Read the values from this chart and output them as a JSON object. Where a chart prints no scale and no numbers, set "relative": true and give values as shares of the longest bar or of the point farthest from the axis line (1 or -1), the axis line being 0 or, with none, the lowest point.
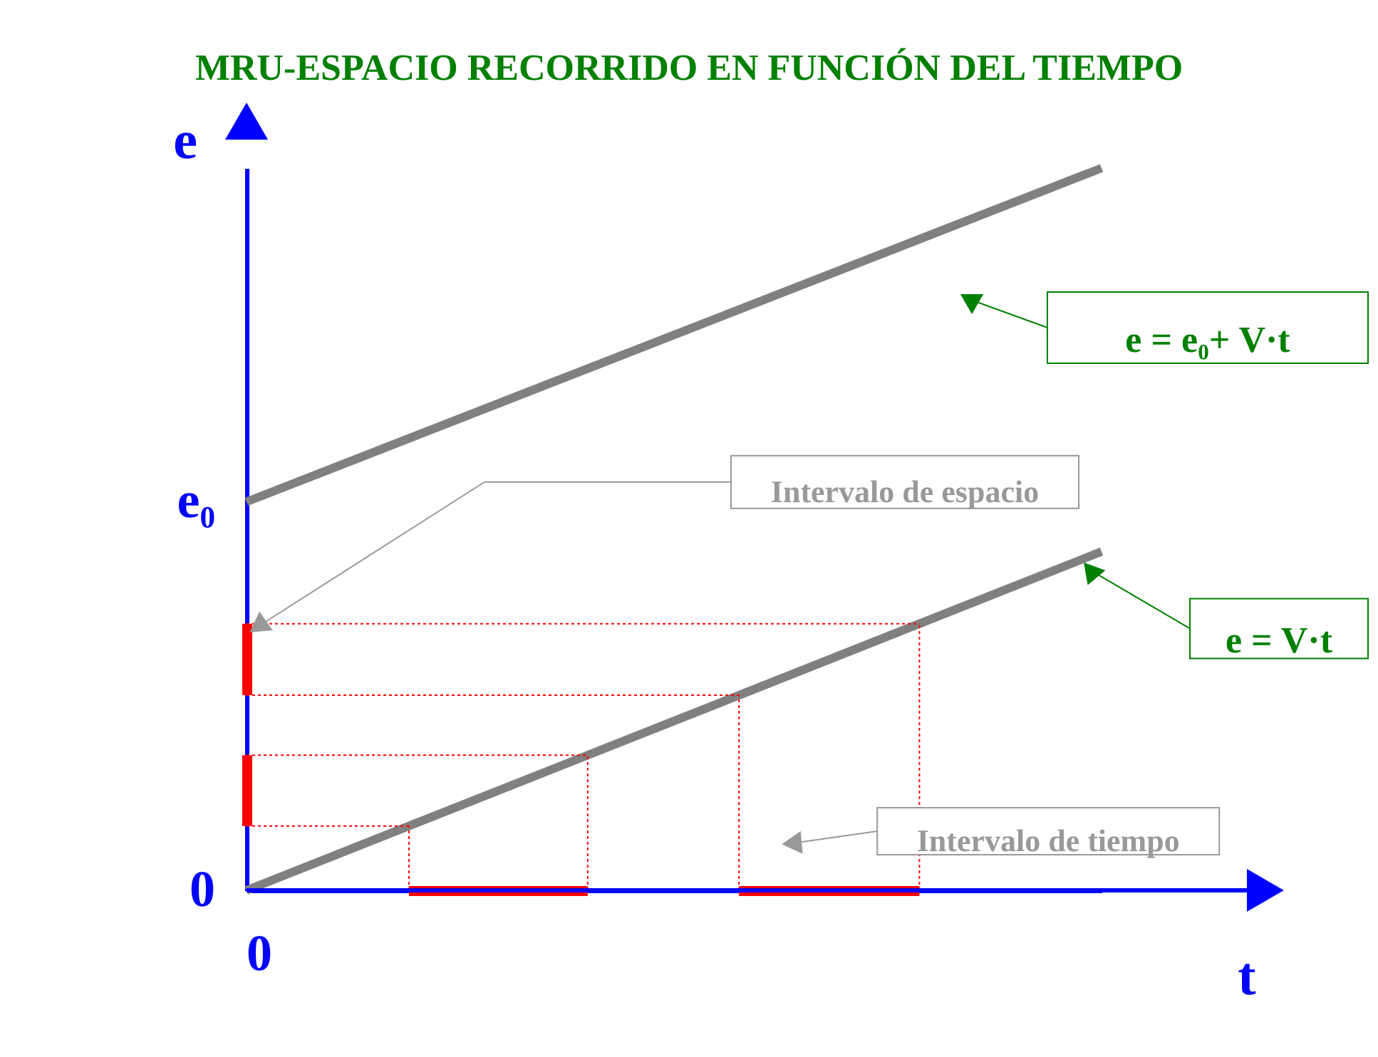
{
  "chart_data": {
    "type": "line",
    "title": "MRU-ESPACIO RECORRIDO EN FUNCIÓN DEL TIEMPO",
    "xlabel": "t",
    "ylabel": "e",
    "relative": true,
    "legend": false,
    "grid": false,
    "categories": [
      null,
      null
    ],
    "series": [
      {
        "name": "e = e₀+ V·t",
        "color": "#808080",
        "values": [
          0.538,
          1
        ]
      },
      {
        "name": "e = V·t",
        "color": "#808080",
        "values": [
          0,
          0.469
        ]
      }
    ],
    "annotations": [
      "e₀",
      "0",
      "0",
      "Intervalo de tiempo",
      "Intervalo de espacio"
    ]
  }
}
